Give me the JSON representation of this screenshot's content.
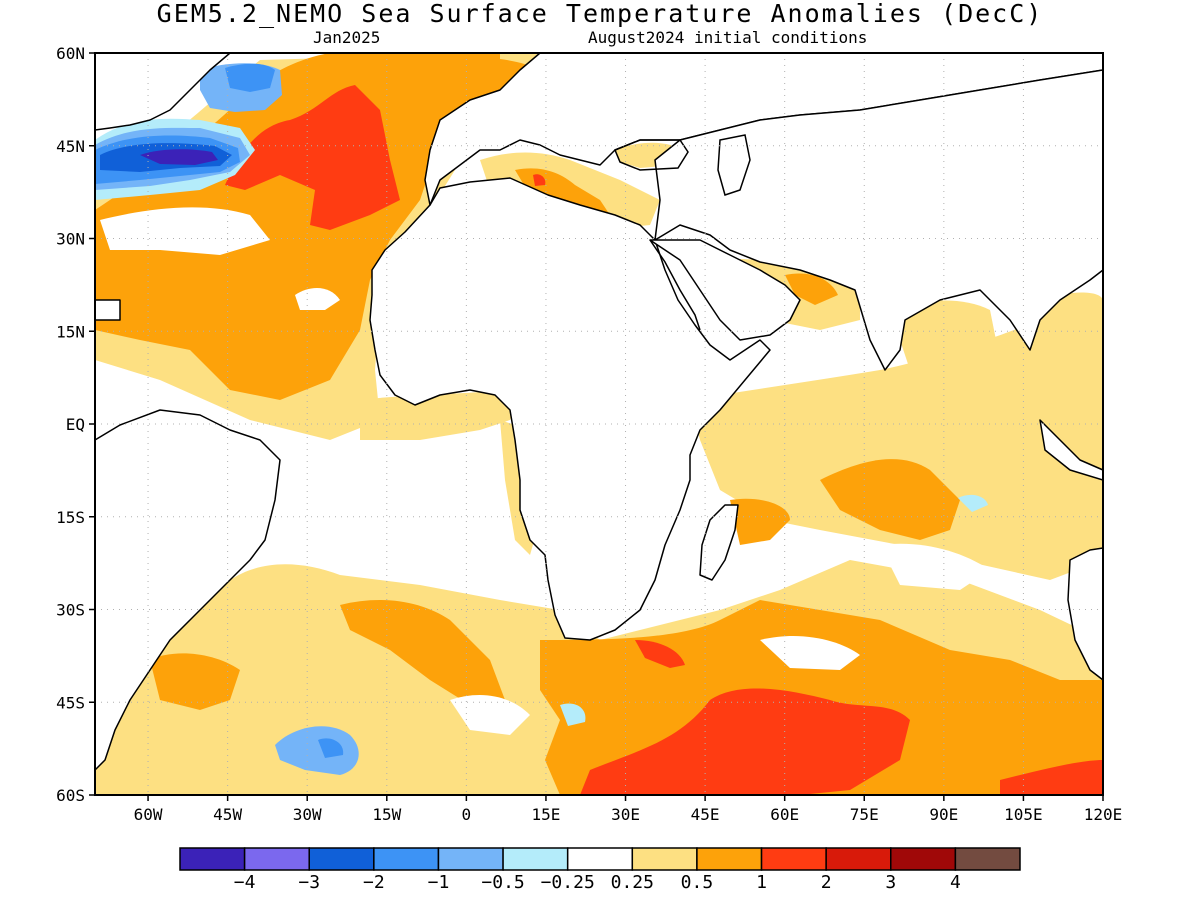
{
  "title": "GEM5.2_NEMO Sea Surface Temperature Anomalies (DecC)",
  "subtitle_left": "Jan2025",
  "subtitle_right": "August2024 initial conditions",
  "map": {
    "lon_range": [
      -70,
      120
    ],
    "lat_range": [
      -60,
      60
    ],
    "lat_ticks": [
      {
        "value": 60,
        "label": "60N"
      },
      {
        "value": 45,
        "label": "45N"
      },
      {
        "value": 30,
        "label": "30N"
      },
      {
        "value": 15,
        "label": "15N"
      },
      {
        "value": 0,
        "label": "EQ"
      },
      {
        "value": -15,
        "label": "15S"
      },
      {
        "value": -30,
        "label": "30S"
      },
      {
        "value": -45,
        "label": "45S"
      },
      {
        "value": -60,
        "label": "60S"
      }
    ],
    "lon_ticks": [
      {
        "value": -60,
        "label": "60W"
      },
      {
        "value": -45,
        "label": "45W"
      },
      {
        "value": -30,
        "label": "30W"
      },
      {
        "value": -15,
        "label": "15W"
      },
      {
        "value": 0,
        "label": "0"
      },
      {
        "value": 15,
        "label": "15E"
      },
      {
        "value": 30,
        "label": "30E"
      },
      {
        "value": 45,
        "label": "45E"
      },
      {
        "value": 60,
        "label": "60E"
      },
      {
        "value": 75,
        "label": "75E"
      },
      {
        "value": 90,
        "label": "90E"
      },
      {
        "value": 105,
        "label": "105E"
      },
      {
        "value": 120,
        "label": "120E"
      }
    ],
    "grid": "dotted",
    "anomaly_regions": [
      {
        "name": "north-atlantic-cold-core",
        "level": "-4",
        "lon": [
          -68,
          -45
        ],
        "lat": [
          40,
          47
        ]
      },
      {
        "name": "north-atlantic-cool",
        "level": "-1",
        "lon": [
          -50,
          -35
        ],
        "lat": [
          47,
          58
        ]
      },
      {
        "name": "north-atlantic-warm",
        "level": "2",
        "lon": [
          -40,
          -10
        ],
        "lat": [
          28,
          52
        ]
      },
      {
        "name": "south-atlantic-cool",
        "level": "-1",
        "lon": [
          -35,
          -20
        ],
        "lat": [
          -57,
          -50
        ]
      },
      {
        "name": "southern-indian-warm",
        "level": "2",
        "lon": [
          30,
          85
        ],
        "lat": [
          -60,
          -40
        ]
      }
    ]
  },
  "colorbar": {
    "colors": [
      "#3b22b8",
      "#7b68ee",
      "#1060d8",
      "#3d93f5",
      "#74b4f8",
      "#b4ecfa",
      "#ffffff",
      "#fde082",
      "#fda20a",
      "#ff3c12",
      "#d81a0a",
      "#a00808",
      "#734b40"
    ],
    "labels": [
      "-4",
      "-3",
      "-2",
      "-1",
      "-0.5",
      "-0.25",
      "0.25",
      "0.5",
      "1",
      "2",
      "3",
      "4"
    ]
  }
}
